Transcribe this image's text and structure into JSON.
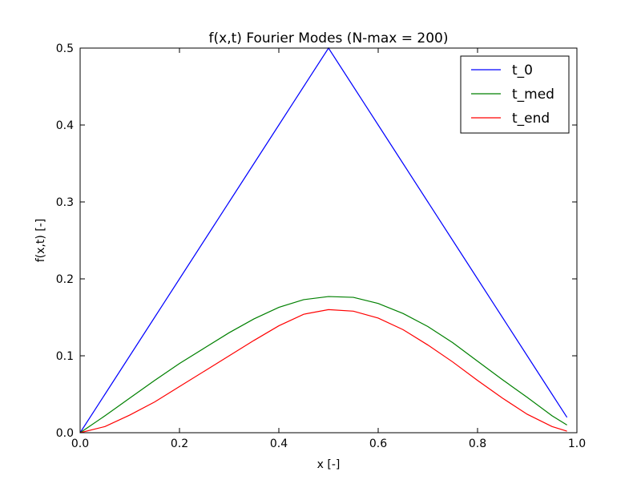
{
  "chart_data": {
    "type": "line",
    "title": "f(x,t) Fourier Modes (N-max = 200)",
    "xlabel": "x [-]",
    "ylabel": "f(x,t) [-]",
    "xlim": [
      0.0,
      1.0
    ],
    "ylim": [
      0.0,
      0.5
    ],
    "xticks": [
      "0.0",
      "0.2",
      "0.4",
      "0.6",
      "0.8",
      "1.0"
    ],
    "yticks": [
      "0.0",
      "0.1",
      "0.2",
      "0.3",
      "0.4",
      "0.5"
    ],
    "grid": false,
    "legend_position": "top-right",
    "x": [
      0.0,
      0.05,
      0.1,
      0.15,
      0.2,
      0.25,
      0.3,
      0.35,
      0.4,
      0.45,
      0.5,
      0.55,
      0.6,
      0.65,
      0.7,
      0.75,
      0.8,
      0.85,
      0.9,
      0.95,
      0.98
    ],
    "series": [
      {
        "name": "t_0",
        "color": "#0000ff",
        "values": [
          0.0,
          0.05,
          0.1,
          0.15,
          0.2,
          0.25,
          0.3,
          0.35,
          0.4,
          0.45,
          0.5,
          0.45,
          0.4,
          0.35,
          0.3,
          0.25,
          0.2,
          0.15,
          0.1,
          0.05,
          0.02
        ]
      },
      {
        "name": "t_med",
        "color": "#008000",
        "values": [
          0.0,
          0.022,
          0.045,
          0.068,
          0.09,
          0.11,
          0.13,
          0.148,
          0.163,
          0.173,
          0.177,
          0.176,
          0.168,
          0.155,
          0.138,
          0.117,
          0.093,
          0.069,
          0.046,
          0.022,
          0.01
        ]
      },
      {
        "name": "t_end",
        "color": "#ff0000",
        "values": [
          0.0,
          0.008,
          0.023,
          0.04,
          0.06,
          0.08,
          0.1,
          0.12,
          0.139,
          0.154,
          0.16,
          0.158,
          0.149,
          0.134,
          0.114,
          0.092,
          0.068,
          0.045,
          0.024,
          0.008,
          0.002
        ]
      }
    ]
  }
}
